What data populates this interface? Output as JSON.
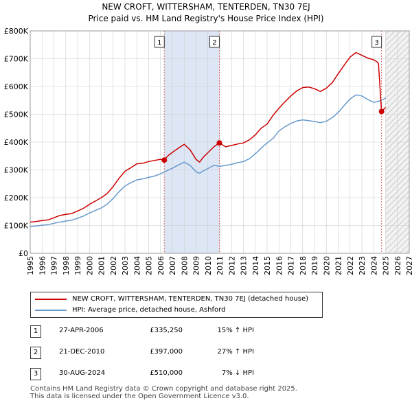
{
  "chart_data": {
    "type": "line",
    "title": "NEW CROFT, WITTERSHAM, TENTERDEN, TN30 7EJ",
    "subtitle": "Price paid vs. HM Land Registry's House Price Index (HPI)",
    "xlabel": "",
    "ylabel": "",
    "xlim": [
      1995,
      2027
    ],
    "ylim": [
      0,
      800000
    ],
    "x_ticks": [
      1995,
      1996,
      1997,
      1998,
      1999,
      2000,
      2001,
      2002,
      2003,
      2004,
      2005,
      2006,
      2007,
      2008,
      2009,
      2010,
      2011,
      2012,
      2013,
      2014,
      2015,
      2016,
      2017,
      2018,
      2019,
      2020,
      2021,
      2022,
      2023,
      2024,
      2025,
      2026,
      2027
    ],
    "y_ticks": [
      {
        "value": 0,
        "label": "£0"
      },
      {
        "value": 100000,
        "label": "£100K"
      },
      {
        "value": 200000,
        "label": "£200K"
      },
      {
        "value": 300000,
        "label": "£300K"
      },
      {
        "value": 400000,
        "label": "£400K"
      },
      {
        "value": 500000,
        "label": "£500K"
      },
      {
        "value": 600000,
        "label": "£600K"
      },
      {
        "value": 700000,
        "label": "£700K"
      },
      {
        "value": 800000,
        "label": "£800K"
      }
    ],
    "grid": true,
    "series": [
      {
        "name": "NEW CROFT, WITTERSHAM, TENTERDEN, TN30 7EJ (detached house)",
        "color": "#cc0000",
        "x": [
          1995.0,
          1995.5,
          1996.0,
          1996.5,
          1997.0,
          1997.5,
          1998.0,
          1998.5,
          1999.0,
          1999.5,
          2000.0,
          2000.5,
          2001.0,
          2001.5,
          2002.0,
          2002.5,
          2003.0,
          2003.5,
          2004.0,
          2004.5,
          2005.0,
          2005.5,
          2006.0,
          2006.32,
          2006.6,
          2007.0,
          2007.5,
          2008.0,
          2008.5,
          2009.0,
          2009.3,
          2009.6,
          2010.0,
          2010.5,
          2010.97,
          2011.5,
          2012.0,
          2012.5,
          2013.0,
          2013.5,
          2014.0,
          2014.5,
          2015.0,
          2015.5,
          2016.0,
          2016.5,
          2017.0,
          2017.5,
          2018.0,
          2018.5,
          2019.0,
          2019.5,
          2020.0,
          2020.5,
          2021.0,
          2021.5,
          2022.0,
          2022.5,
          2023.0,
          2023.5,
          2024.0,
          2024.3,
          2024.4,
          2024.66,
          2025.0
        ],
        "values": [
          112000,
          114000,
          118000,
          120000,
          128000,
          136000,
          140000,
          143000,
          152000,
          162000,
          176000,
          188000,
          200000,
          215000,
          240000,
          270000,
          295000,
          308000,
          322000,
          324000,
          330000,
          334000,
          338000,
          335250,
          350000,
          363000,
          378000,
          392000,
          372000,
          338000,
          328000,
          345000,
          362000,
          383000,
          397000,
          383000,
          388000,
          393000,
          397000,
          408000,
          426000,
          450000,
          465000,
          496000,
          522000,
          545000,
          566000,
          584000,
          596000,
          598000,
          592000,
          582000,
          594000,
          614000,
          646000,
          676000,
          706000,
          722000,
          712000,
          702000,
          696000,
          688000,
          682000,
          510000,
          525000
        ]
      },
      {
        "name": "HPI: Average price, detached house, Ashford",
        "color": "#6699cc",
        "x": [
          1995.0,
          1995.5,
          1996.0,
          1996.5,
          1997.0,
          1997.5,
          1998.0,
          1998.5,
          1999.0,
          1999.5,
          2000.0,
          2000.5,
          2001.0,
          2001.5,
          2002.0,
          2002.5,
          2003.0,
          2003.5,
          2004.0,
          2004.5,
          2005.0,
          2005.5,
          2006.0,
          2006.5,
          2007.0,
          2007.5,
          2008.0,
          2008.5,
          2009.0,
          2009.3,
          2009.6,
          2010.0,
          2010.5,
          2011.0,
          2011.5,
          2012.0,
          2012.5,
          2013.0,
          2013.5,
          2014.0,
          2014.5,
          2015.0,
          2015.5,
          2016.0,
          2016.5,
          2017.0,
          2017.5,
          2018.0,
          2018.5,
          2019.0,
          2019.5,
          2020.0,
          2020.5,
          2021.0,
          2021.5,
          2022.0,
          2022.5,
          2023.0,
          2023.5,
          2024.0,
          2024.5,
          2025.0
        ],
        "values": [
          97000,
          98000,
          101000,
          103000,
          108000,
          112000,
          116000,
          119000,
          126000,
          134000,
          145000,
          154000,
          163000,
          177000,
          197000,
          222000,
          242000,
          254000,
          264000,
          268000,
          273000,
          278000,
          286000,
          296000,
          306000,
          317000,
          328000,
          316000,
          293000,
          288000,
          296000,
          305000,
          316000,
          313000,
          316000,
          320000,
          326000,
          330000,
          340000,
          358000,
          378000,
          397000,
          413000,
          440000,
          455000,
          467000,
          476000,
          480000,
          477000,
          474000,
          470000,
          475000,
          488000,
          507000,
          531000,
          555000,
          570000,
          566000,
          553000,
          543000,
          548000,
          558000
        ]
      }
    ],
    "sales": [
      {
        "label": "1",
        "x": 2006.32,
        "value": 335250
      },
      {
        "label": "2",
        "x": 2010.97,
        "value": 397000
      },
      {
        "label": "3",
        "x": 2024.66,
        "value": 510000
      }
    ],
    "shaded_span": [
      2006.32,
      2010.97
    ],
    "forecast_from": 2025.0
  },
  "legend": {
    "property_label": "NEW CROFT, WITTERSHAM, TENTERDEN, TN30 7EJ (detached house)",
    "hpi_label": "HPI: Average price, detached house, Ashford"
  },
  "transactions": [
    {
      "num": "1",
      "date": "27-APR-2006",
      "price": "£335,250",
      "hpi": "15% ↑ HPI"
    },
    {
      "num": "2",
      "date": "21-DEC-2010",
      "price": "£397,000",
      "hpi": "27% ↑ HPI"
    },
    {
      "num": "3",
      "date": "30-AUG-2024",
      "price": "£510,000",
      "hpi": "7% ↓ HPI"
    }
  ],
  "footer": {
    "line1": "Contains HM Land Registry data © Crown copyright and database right 2025.",
    "line2": "This data is licensed under the Open Government Licence v3.0."
  }
}
